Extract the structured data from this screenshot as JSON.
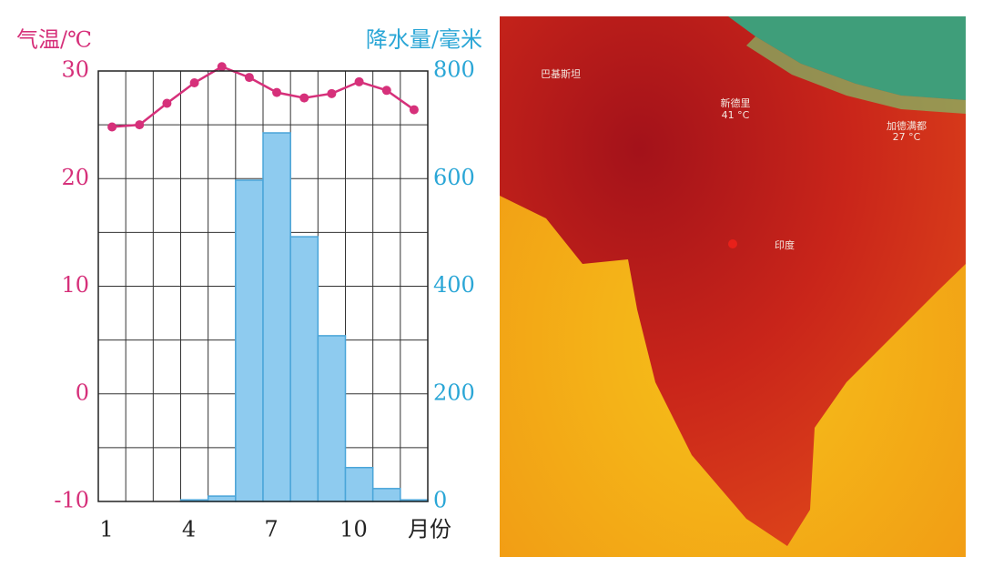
{
  "chart_data": {
    "type": "combo",
    "y_label": "气温/℃",
    "y2_label": "降水量/毫米",
    "x_label": "月份",
    "categories": [
      "1",
      null,
      null,
      "4",
      null,
      null,
      "7",
      null,
      null,
      "10",
      null,
      null
    ],
    "ylim": [
      -10,
      30
    ],
    "yticks": [
      -10,
      0,
      10,
      20,
      30
    ],
    "y2lim": [
      0,
      800
    ],
    "y2ticks": [
      0,
      200,
      400,
      600,
      800
    ],
    "ygrid": [
      -10,
      -5,
      0,
      5,
      10,
      15,
      20,
      25,
      30
    ],
    "grid": true,
    "series": [
      {
        "type": "bar",
        "axis": "y2",
        "color": "#8ecbef",
        "values": [
          0,
          0,
          0,
          3,
          10,
          597,
          685,
          492,
          308,
          63,
          24,
          3
        ]
      },
      {
        "type": "line",
        "axis": "y",
        "color": "#d6307a",
        "values": [
          24.8,
          25.0,
          27.0,
          28.9,
          30.4,
          29.4,
          28.0,
          27.5,
          27.9,
          29.0,
          28.2,
          26.4
        ]
      }
    ]
  },
  "map": {
    "labels": [
      "巴基斯坦",
      "新德里",
      "41 °C",
      "加德满都",
      "27 °C",
      "印度"
    ]
  }
}
